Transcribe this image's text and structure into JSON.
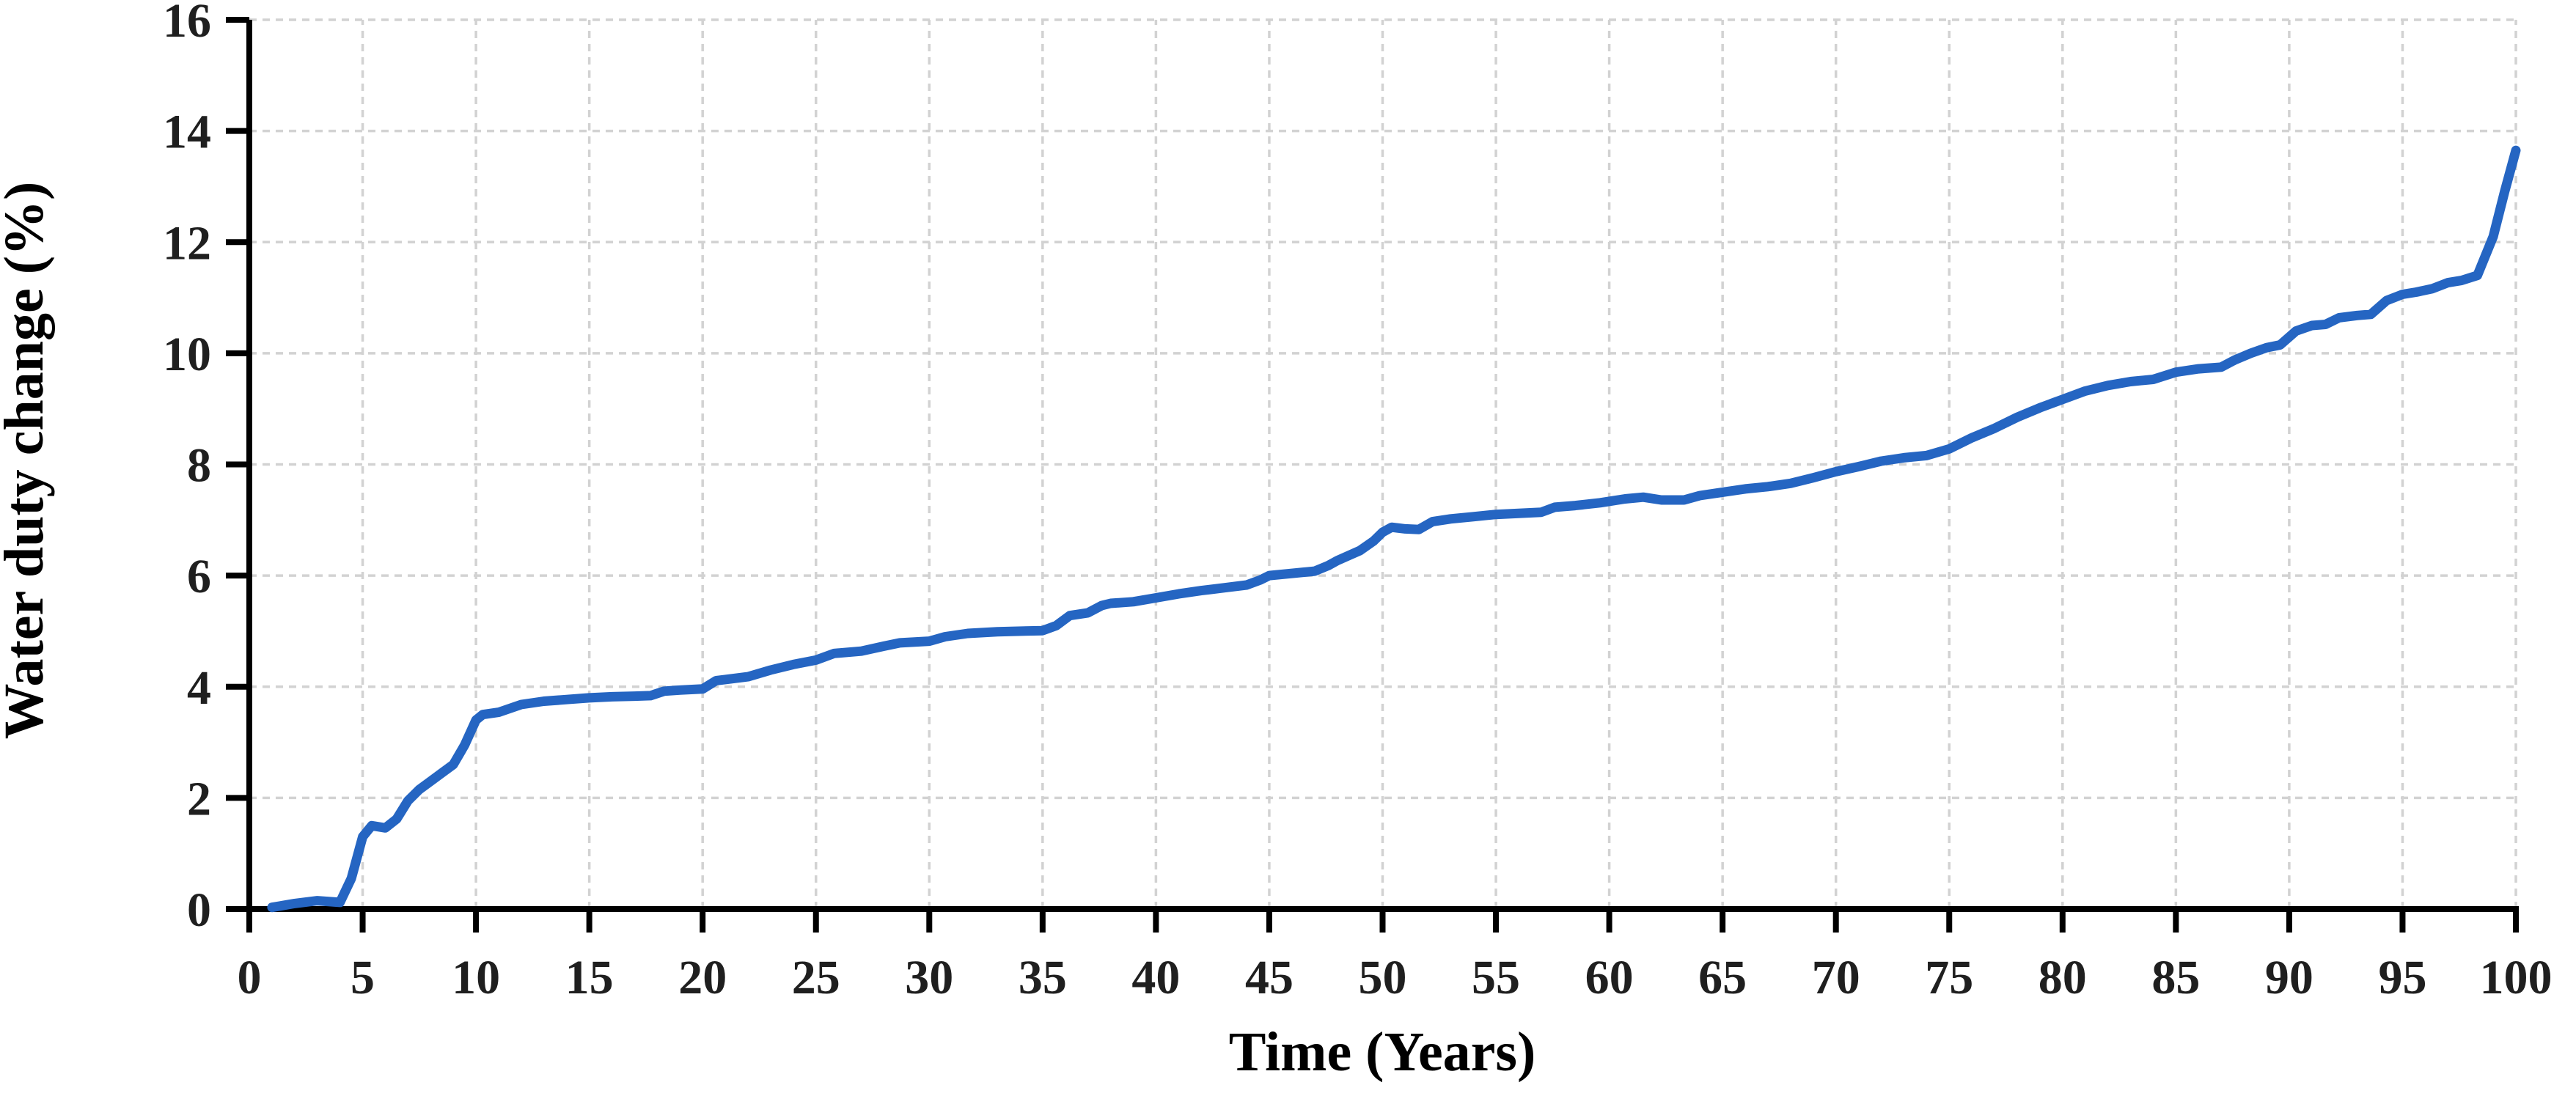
{
  "chart_data": {
    "type": "line",
    "title": "",
    "xlabel": "Time (Years)",
    "ylabel": "Water duty change (%)",
    "xlim": [
      0,
      100
    ],
    "ylim": [
      0,
      16
    ],
    "x_ticks": [
      0,
      5,
      10,
      15,
      20,
      25,
      30,
      35,
      40,
      45,
      50,
      55,
      60,
      65,
      70,
      75,
      80,
      85,
      90,
      95,
      100
    ],
    "y_ticks": [
      0,
      2,
      4,
      6,
      8,
      10,
      12,
      14,
      16
    ],
    "grid": "both-dashed",
    "legend": "none",
    "series": [
      {
        "name": "Water duty change",
        "x": [
          1,
          2,
          3,
          4,
          4.5,
          5,
          5.4,
          6,
          6.5,
          7,
          7.5,
          8,
          8.5,
          9,
          9.5,
          10,
          10.3,
          11,
          12,
          13,
          14,
          15,
          16,
          17,
          17.7,
          18.3,
          19,
          20,
          20.6,
          21,
          22,
          23,
          24,
          25,
          25.8,
          27,
          28,
          28.7,
          30,
          30.7,
          31.7,
          33,
          35,
          35.6,
          36.2,
          37,
          37.6,
          38,
          39,
          40,
          41,
          42,
          43,
          44,
          44.6,
          45,
          46,
          47,
          47.6,
          48,
          49,
          49.6,
          50,
          50.4,
          51,
          51.6,
          52.2,
          53,
          54,
          55,
          56,
          57,
          57.6,
          58.5,
          59.6,
          60.7,
          61.5,
          62.3,
          63.3,
          64,
          65,
          66,
          67,
          68,
          69,
          70,
          71,
          72,
          73,
          74,
          75,
          76,
          77,
          78,
          79,
          80,
          81,
          82,
          83,
          84,
          85,
          86,
          87,
          87.6,
          88.3,
          89,
          89.6,
          90.3,
          91,
          91.6,
          92.2,
          93,
          93.6,
          94.3,
          95,
          95.6,
          96.3,
          97,
          97.6,
          98.3,
          99,
          99.5,
          100
        ],
        "y": [
          0.03,
          0.1,
          0.15,
          0.12,
          0.55,
          1.3,
          1.5,
          1.46,
          1.62,
          1.95,
          2.15,
          2.3,
          2.45,
          2.6,
          2.95,
          3.4,
          3.5,
          3.54,
          3.68,
          3.74,
          3.77,
          3.8,
          3.82,
          3.83,
          3.84,
          3.92,
          3.94,
          3.96,
          4.11,
          4.13,
          4.18,
          4.3,
          4.4,
          4.48,
          4.6,
          4.64,
          4.73,
          4.79,
          4.82,
          4.9,
          4.96,
          4.99,
          5.01,
          5.1,
          5.28,
          5.33,
          5.46,
          5.5,
          5.53,
          5.6,
          5.67,
          5.73,
          5.78,
          5.83,
          5.92,
          6.0,
          6.04,
          6.08,
          6.18,
          6.27,
          6.45,
          6.62,
          6.78,
          6.87,
          6.84,
          6.83,
          6.97,
          7.02,
          7.06,
          7.1,
          7.12,
          7.14,
          7.23,
          7.26,
          7.31,
          7.38,
          7.41,
          7.36,
          7.36,
          7.44,
          7.5,
          7.56,
          7.6,
          7.66,
          7.76,
          7.87,
          7.96,
          8.06,
          8.12,
          8.16,
          8.28,
          8.48,
          8.65,
          8.85,
          9.02,
          9.17,
          9.32,
          9.42,
          9.49,
          9.53,
          9.66,
          9.72,
          9.75,
          9.88,
          10.0,
          10.1,
          10.15,
          10.4,
          10.5,
          10.52,
          10.64,
          10.68,
          10.7,
          10.95,
          11.06,
          11.1,
          11.16,
          11.27,
          11.31,
          11.4,
          12.1,
          12.9,
          13.65
        ]
      }
    ],
    "colors": {
      "line": "#2565C2",
      "gridline": "#D2D2D2",
      "axis": "#000000",
      "tick_label": "#1F1F1F",
      "axis_title": "#000000",
      "background": "#FFFFFF"
    }
  }
}
